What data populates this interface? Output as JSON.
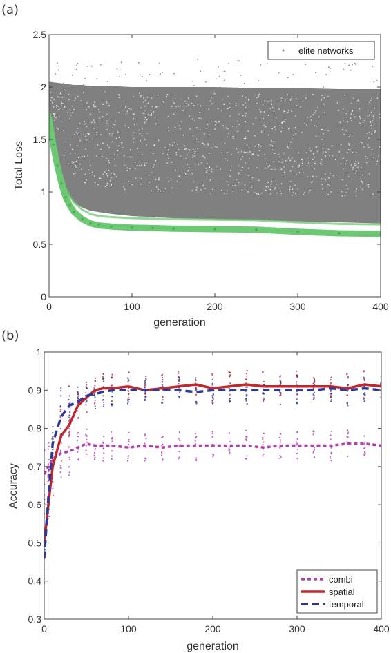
{
  "chart_data": [
    {
      "type": "scatter",
      "panel_label": "(a)",
      "title": "",
      "xlabel": "generation",
      "ylabel": "Total Loss",
      "xlim": [
        0,
        400
      ],
      "ylim": [
        0,
        2.5
      ],
      "xticks": [
        0,
        100,
        200,
        300,
        400
      ],
      "yticks": [
        0,
        0.5,
        1,
        1.5,
        2,
        2.5
      ],
      "grid": false,
      "legend": {
        "position": "top-right",
        "entries": [
          {
            "name": "elite networks"
          }
        ]
      },
      "colors": {
        "population": "#808080",
        "elite": "#6cc872"
      },
      "population_band": {
        "x": [
          0,
          10,
          20,
          30,
          40,
          50,
          75,
          100,
          150,
          200,
          250,
          300,
          350,
          400
        ],
        "upper": [
          2.05,
          2.04,
          2.03,
          2.02,
          2.02,
          2.01,
          2.01,
          2.0,
          2.0,
          2.0,
          1.99,
          1.99,
          1.98,
          1.98
        ],
        "lower": [
          1.7,
          1.25,
          1.0,
          0.9,
          0.85,
          0.82,
          0.79,
          0.77,
          0.75,
          0.74,
          0.73,
          0.72,
          0.71,
          0.7
        ]
      },
      "series": [
        {
          "name": "elite networks",
          "x": [
            0,
            5,
            10,
            15,
            20,
            25,
            30,
            40,
            50,
            60,
            75,
            100,
            125,
            150,
            200,
            250,
            300,
            350,
            400
          ],
          "values": [
            1.7,
            1.45,
            1.25,
            1.08,
            0.95,
            0.87,
            0.81,
            0.74,
            0.7,
            0.68,
            0.67,
            0.66,
            0.655,
            0.65,
            0.645,
            0.64,
            0.62,
            0.605,
            0.6
          ]
        }
      ]
    },
    {
      "type": "line",
      "panel_label": "(b)",
      "title": "",
      "xlabel": "generation",
      "ylabel": "Accuracy",
      "xlim": [
        0,
        400
      ],
      "ylim": [
        0.3,
        1
      ],
      "xticks": [
        0,
        100,
        200,
        300,
        400
      ],
      "yticks": [
        0.3,
        0.4,
        0.5,
        0.6,
        0.7,
        0.8,
        0.9,
        1
      ],
      "grid": false,
      "legend": {
        "position": "bottom-right"
      },
      "x": [
        0,
        5,
        10,
        20,
        30,
        40,
        50,
        60,
        70,
        80,
        100,
        120,
        140,
        160,
        180,
        200,
        220,
        240,
        260,
        280,
        300,
        320,
        340,
        360,
        380,
        400
      ],
      "series": [
        {
          "name": "combi",
          "color": "#b040b0",
          "dash": "dotted",
          "values": [
            0.68,
            0.7,
            0.72,
            0.735,
            0.74,
            0.75,
            0.76,
            0.755,
            0.755,
            0.755,
            0.75,
            0.755,
            0.75,
            0.755,
            0.755,
            0.755,
            0.755,
            0.755,
            0.75,
            0.755,
            0.755,
            0.755,
            0.755,
            0.76,
            0.76,
            0.755
          ]
        },
        {
          "name": "spatial",
          "color": "#c0282d",
          "dash": "solid",
          "values": [
            0.5,
            0.6,
            0.7,
            0.78,
            0.81,
            0.86,
            0.88,
            0.9,
            0.905,
            0.905,
            0.91,
            0.9,
            0.905,
            0.91,
            0.915,
            0.905,
            0.91,
            0.915,
            0.91,
            0.91,
            0.91,
            0.91,
            0.91,
            0.905,
            0.915,
            0.91
          ]
        },
        {
          "name": "temporal",
          "color": "#2b3a9c",
          "dash": "dashed",
          "values": [
            0.46,
            0.62,
            0.76,
            0.83,
            0.86,
            0.87,
            0.885,
            0.89,
            0.895,
            0.9,
            0.9,
            0.9,
            0.9,
            0.9,
            0.895,
            0.9,
            0.9,
            0.9,
            0.9,
            0.9,
            0.9,
            0.9,
            0.905,
            0.9,
            0.905,
            0.9
          ]
        }
      ]
    }
  ]
}
